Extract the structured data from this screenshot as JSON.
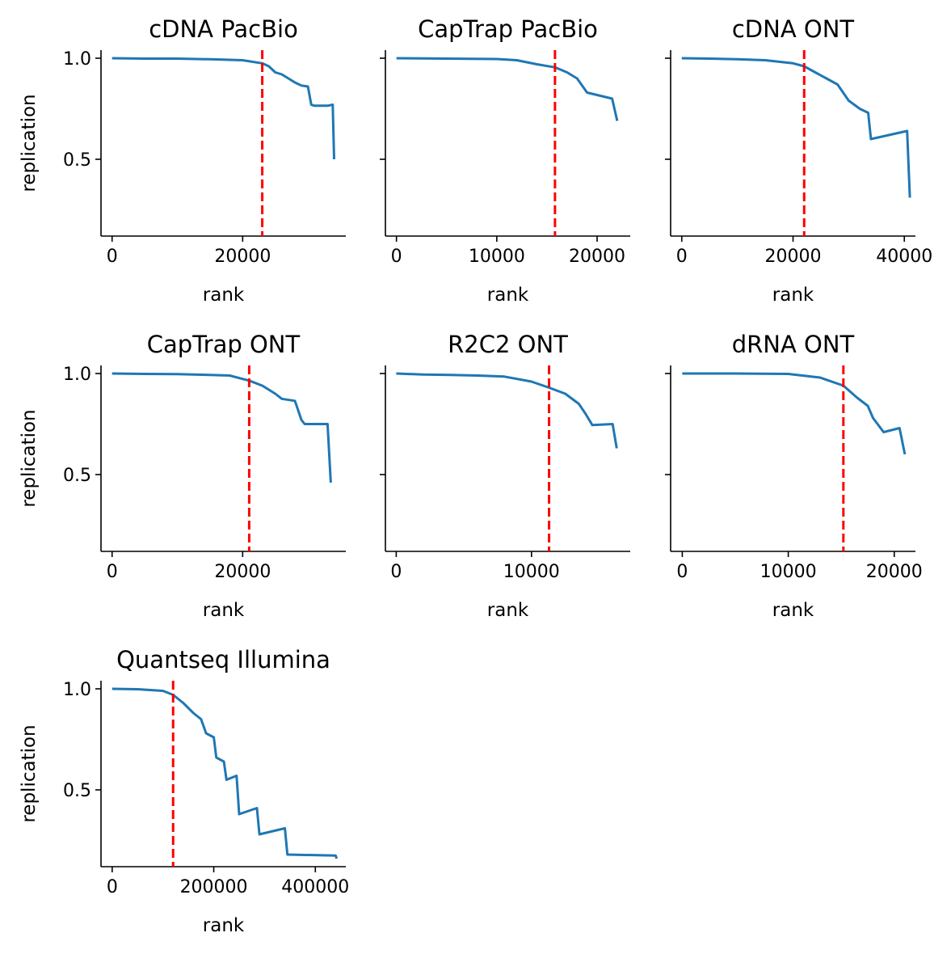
{
  "chart_data": [
    {
      "type": "line",
      "title": "cDNA PacBio",
      "xlabel": "rank",
      "ylabel": "replication",
      "xlim": [
        -1700,
        35800
      ],
      "ylim": [
        0.12,
        1.04
      ],
      "xticks": [
        0,
        20000
      ],
      "yticks": [
        0.5,
        1.0
      ],
      "xtick_labels": [
        "0",
        "20000"
      ],
      "ytick_labels": [
        "0.5",
        "1.0"
      ],
      "cutoff_x": 23000,
      "series": [
        {
          "x": [
            0,
            5000,
            10000,
            15000,
            20000,
            23000,
            24000,
            25000,
            26000,
            28000,
            29000,
            30000,
            30500,
            31000,
            33000,
            33800,
            34000
          ],
          "y": [
            1.0,
            0.998,
            0.998,
            0.995,
            0.99,
            0.975,
            0.96,
            0.93,
            0.92,
            0.88,
            0.865,
            0.86,
            0.77,
            0.765,
            0.765,
            0.77,
            0.5
          ]
        }
      ]
    },
    {
      "type": "line",
      "title": "CapTrap PacBio",
      "xlabel": "rank",
      "ylabel": "",
      "xlim": [
        -1100,
        23300
      ],
      "ylim": [
        0.12,
        1.04
      ],
      "xticks": [
        0,
        10000,
        20000
      ],
      "yticks": [
        0.5,
        1.0
      ],
      "xtick_labels": [
        "0",
        "10000",
        "20000"
      ],
      "ytick_labels": [],
      "cutoff_x": 15800,
      "series": [
        {
          "x": [
            0,
            5000,
            10000,
            12000,
            14000,
            15800,
            17000,
            18000,
            19000,
            21500,
            22000
          ],
          "y": [
            1.0,
            0.998,
            0.996,
            0.99,
            0.97,
            0.955,
            0.93,
            0.9,
            0.83,
            0.8,
            0.69
          ]
        }
      ]
    },
    {
      "type": "line",
      "title": "cDNA ONT",
      "xlabel": "rank",
      "ylabel": "",
      "xlim": [
        -2000,
        42000
      ],
      "ylim": [
        0.12,
        1.04
      ],
      "xticks": [
        0,
        20000,
        40000
      ],
      "yticks": [
        0.5,
        1.0
      ],
      "xtick_labels": [
        "0",
        "20000",
        "40000"
      ],
      "ytick_labels": [],
      "cutoff_x": 22000,
      "series": [
        {
          "x": [
            0,
            5000,
            10000,
            15000,
            20000,
            22000,
            24000,
            26000,
            28000,
            30000,
            32000,
            33500,
            34000,
            40500,
            41000
          ],
          "y": [
            1.0,
            0.998,
            0.995,
            0.99,
            0.975,
            0.96,
            0.93,
            0.9,
            0.87,
            0.79,
            0.75,
            0.73,
            0.6,
            0.64,
            0.31
          ]
        }
      ]
    },
    {
      "type": "line",
      "title": "CapTrap ONT",
      "xlabel": "rank",
      "ylabel": "replication",
      "xlim": [
        -1700,
        35800
      ],
      "ylim": [
        0.12,
        1.04
      ],
      "xticks": [
        0,
        20000
      ],
      "yticks": [
        0.5,
        1.0
      ],
      "xtick_labels": [
        "0",
        "20000"
      ],
      "ytick_labels": [
        "0.5",
        "1.0"
      ],
      "cutoff_x": 21000,
      "series": [
        {
          "x": [
            0,
            5000,
            10000,
            15000,
            18000,
            21000,
            23000,
            25000,
            26000,
            28000,
            29000,
            29500,
            33000,
            33500
          ],
          "y": [
            1.0,
            0.998,
            0.997,
            0.993,
            0.99,
            0.965,
            0.94,
            0.9,
            0.875,
            0.865,
            0.77,
            0.75,
            0.75,
            0.46
          ]
        }
      ]
    },
    {
      "type": "line",
      "title": "R2C2 ONT",
      "xlabel": "rank",
      "ylabel": "",
      "xlim": [
        -800,
        17300
      ],
      "ylim": [
        0.12,
        1.04
      ],
      "xticks": [
        0,
        10000
      ],
      "yticks": [
        0.5,
        1.0
      ],
      "xtick_labels": [
        "0",
        "10000"
      ],
      "ytick_labels": [],
      "cutoff_x": 11300,
      "series": [
        {
          "x": [
            0,
            2000,
            4000,
            6000,
            8000,
            10000,
            11300,
            12500,
            13500,
            14000,
            14500,
            16000,
            16300
          ],
          "y": [
            1.0,
            0.995,
            0.993,
            0.99,
            0.985,
            0.96,
            0.93,
            0.9,
            0.85,
            0.8,
            0.745,
            0.75,
            0.63
          ]
        }
      ]
    },
    {
      "type": "line",
      "title": "dRNA ONT",
      "xlabel": "rank",
      "ylabel": "",
      "xlim": [
        -1100,
        22000
      ],
      "ylim": [
        0.12,
        1.04
      ],
      "xticks": [
        0,
        10000,
        20000
      ],
      "yticks": [
        0.5,
        1.0
      ],
      "xtick_labels": [
        "0",
        "10000",
        "20000"
      ],
      "ytick_labels": [],
      "cutoff_x": 15200,
      "series": [
        {
          "x": [
            0,
            5000,
            10000,
            13000,
            15200,
            16500,
            17500,
            18000,
            19000,
            20500,
            21000
          ],
          "y": [
            1.0,
            1.0,
            0.998,
            0.98,
            0.94,
            0.88,
            0.84,
            0.78,
            0.71,
            0.73,
            0.6
          ]
        }
      ]
    },
    {
      "type": "line",
      "title": "Quantseq Illumina",
      "xlabel": "rank",
      "ylabel": "replication",
      "xlim": [
        -22000,
        460000
      ],
      "ylim": [
        0.12,
        1.04
      ],
      "xticks": [
        0,
        200000,
        400000
      ],
      "yticks": [
        0.5,
        1.0
      ],
      "xtick_labels": [
        "0",
        "200000",
        "400000"
      ],
      "ytick_labels": [
        "0.5",
        "1.0"
      ],
      "cutoff_x": 120000,
      "series": [
        {
          "x": [
            0,
            50000,
            100000,
            120000,
            140000,
            160000,
            175000,
            185000,
            200000,
            205000,
            220000,
            225000,
            245000,
            250000,
            285000,
            290000,
            340000,
            345000,
            440000,
            442000
          ],
          "y": [
            1.0,
            0.998,
            0.99,
            0.97,
            0.93,
            0.88,
            0.85,
            0.78,
            0.76,
            0.66,
            0.64,
            0.55,
            0.57,
            0.38,
            0.41,
            0.28,
            0.31,
            0.18,
            0.175,
            0.16
          ]
        }
      ]
    }
  ],
  "colors": {
    "series": "#1f77b4",
    "cutoff": "#ff0000",
    "axes": "#000000"
  }
}
